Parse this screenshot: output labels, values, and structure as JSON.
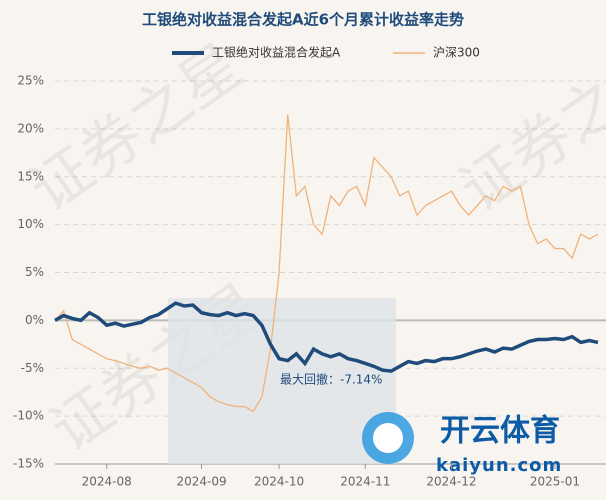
{
  "chart_data": {
    "type": "line",
    "title": "工银绝对收益混合发起A近6个月累计收益率走势",
    "categories": [
      null,
      null,
      null,
      null,
      null,
      null,
      "2024-08",
      null,
      null,
      null,
      null,
      null,
      null,
      null,
      null,
      null,
      null,
      "2024-09",
      null,
      null,
      null,
      null,
      null,
      null,
      null,
      null,
      "2024-10",
      null,
      null,
      null,
      null,
      null,
      null,
      null,
      null,
      null,
      "2024-11",
      null,
      null,
      null,
      null,
      null,
      null,
      null,
      null,
      null,
      "2024-12",
      null,
      null,
      null,
      null,
      null,
      null,
      null,
      null,
      null,
      null,
      null,
      "2025-01",
      null,
      null,
      null,
      null,
      null
    ],
    "series": [
      {
        "name": "工银绝对收益混合发起A",
        "color": "#1f4b7a",
        "values": [
          0,
          0.5,
          0.2,
          0,
          0.8,
          0.3,
          -0.5,
          -0.3,
          -0.6,
          -0.4,
          -0.2,
          0.3,
          0.6,
          1.2,
          1.8,
          1.5,
          1.6,
          0.8,
          0.6,
          0.5,
          0.8,
          0.5,
          0.7,
          0.5,
          -0.5,
          -2.5,
          -4,
          -4.2,
          -3.5,
          -4.5,
          -3,
          -3.5,
          -3.8,
          -3.5,
          -4,
          -4.2,
          -4.5,
          -4.8,
          -5.2,
          -5.3,
          -4.8,
          -4.3,
          -4.5,
          -4.2,
          -4.3,
          -4,
          -4,
          -3.8,
          -3.5,
          -3.2,
          -3,
          -3.3,
          -2.9,
          -3,
          -2.6,
          -2.2,
          -2,
          -2,
          -1.9,
          -2,
          -1.7,
          -2.3,
          -2.1,
          -2.3
        ]
      },
      {
        "name": "沪深300",
        "color": "#f0b27a",
        "values": [
          0,
          1,
          -2,
          -2.5,
          -3,
          -3.5,
          -4,
          -4.2,
          -4.5,
          -4.8,
          -5,
          -4.8,
          -5.2,
          -5,
          -5.5,
          -6,
          -6.5,
          -7,
          -8,
          -8.5,
          -8.8,
          -9,
          -9,
          -9.5,
          -8,
          -3,
          5,
          21.5,
          13,
          14,
          10,
          9,
          13,
          12,
          13.5,
          14,
          12,
          17,
          16,
          15,
          13,
          13.5,
          11,
          12,
          12.5,
          13,
          13.5,
          12,
          11,
          12,
          13,
          12.5,
          14,
          13.5,
          14,
          10,
          8,
          8.5,
          7.5,
          7.5,
          6.5,
          9,
          8.5,
          9
        ]
      }
    ],
    "ylim": [
      -15,
      25
    ],
    "yticks": [
      {
        "value": -15,
        "label": "-15%"
      },
      {
        "value": -10,
        "label": "-10%"
      },
      {
        "value": -5,
        "label": "-5%"
      },
      {
        "value": 0,
        "label": "0%"
      },
      {
        "value": 5,
        "label": "5%"
      },
      {
        "value": 10,
        "label": "10%"
      },
      {
        "value": 15,
        "label": "15%"
      },
      {
        "value": 20,
        "label": "20%"
      },
      {
        "value": 25,
        "label": "25%"
      }
    ],
    "grid": true,
    "max_drawdown_label": "最大回撤：-7.14%"
  },
  "watermark": "证券之星",
  "logo": {
    "name": "开云体育",
    "url": "kaiyun.com"
  }
}
